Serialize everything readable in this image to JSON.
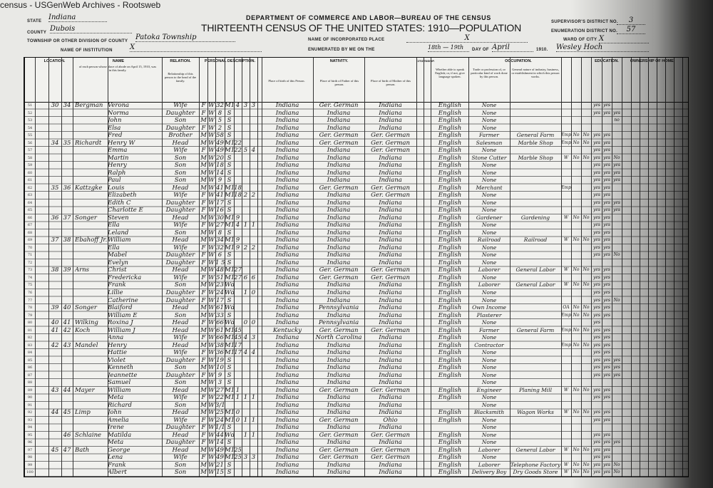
{
  "watermark": "census - USGenWeb Archives - Rootsweb",
  "header": {
    "department": "DEPARTMENT OF COMMERCE AND LABOR—BUREAU OF THE CENSUS",
    "title": "THIRTEENTH CENSUS OF THE UNITED STATES: 1910—POPULATION",
    "state_label": "STATE",
    "state": "Indiana",
    "county_label": "COUNTY",
    "county": "Dubois",
    "township_label": "TOWNSHIP OR OTHER DIVISION OF COUNTY",
    "township": "Patoka Township",
    "institution_label": "NAME OF INSTITUTION",
    "institution": "X",
    "incorporated_label": "NAME OF INCORPORATED PLACE",
    "incorporated": "X",
    "enumerated_label": "ENUMERATED BY ME ON THE",
    "enumerated_days": "18th — 19th",
    "day_of_label": "DAY OF",
    "month": "April",
    "year": "1910.",
    "enumerator": "Wesley Hoch",
    "supervisor_label": "SUPERVISOR'S DISTRICT NO.",
    "supervisor_district": "3",
    "enumeration_label": "ENUMERATION DISTRICT NO.",
    "enumeration_district": "57",
    "ward_label": "WARD OF CITY",
    "ward": "X"
  },
  "column_groups": {
    "location": "LOCATION.",
    "name": "NAME",
    "name_note": "of each person whose place of abode on April 15, 1910, was in this family.",
    "relation": "RELATION.",
    "relation_note": "Relationship of this person to the head of the family.",
    "personal": "PERSONAL DESCRIPTION.",
    "nativity": "NATIVITY.",
    "nativity_person": "Place of birth of this Person.",
    "nativity_father": "Place of birth of Father of this person.",
    "nativity_mother": "Place of birth of Mother of this person.",
    "citizenship": "CITIZENSHIP.",
    "language_note": "Whether able to speak English; or, if not, give language spoken.",
    "occupation": "OCCUPATION.",
    "trade_note": "Trade or profession of, or particular kind of work done by this person.",
    "industry_note": "General nature of industry, business, or establishment in which this person works.",
    "education": "EDUCATION.",
    "ownership": "OWNERSHIP OF HOME."
  },
  "rows": [
    [
      "51",
      "30",
      "34",
      "Bergman",
      "Verona",
      "Wife",
      "F",
      "W",
      "32",
      "M1",
      "4",
      "3",
      "3",
      "Indiana",
      "Ger. German",
      "Indiana",
      "English",
      "None",
      "",
      "",
      "",
      "",
      "yes",
      "yes",
      ""
    ],
    [
      "52",
      "",
      "",
      "",
      "Norma",
      "Daughter",
      "F",
      "W",
      "8",
      "S",
      "",
      "",
      "",
      "Indiana",
      "Indiana",
      "Indiana",
      "English",
      "None",
      "",
      "",
      "",
      "",
      "yes",
      "yes",
      "yes"
    ],
    [
      "53",
      "",
      "",
      "",
      "John",
      "Son",
      "M",
      "W",
      "5",
      "S",
      "",
      "",
      "",
      "Indiana",
      "Indiana",
      "Indiana",
      "English",
      "None",
      "",
      "",
      "",
      "",
      "",
      "",
      "no"
    ],
    [
      "54",
      "",
      "",
      "",
      "Elsa",
      "Daughter",
      "F",
      "W",
      "2",
      "S",
      "",
      "",
      "",
      "Indiana",
      "Indiana",
      "Indiana",
      "English",
      "None",
      "",
      "",
      "",
      "",
      "",
      "",
      ""
    ],
    [
      "55",
      "",
      "",
      "",
      "Fred",
      "Brother",
      "M",
      "W",
      "58",
      "S",
      "",
      "",
      "",
      "Indiana",
      "Ger. German",
      "Ger. German",
      "English",
      "Farmer",
      "General Farm",
      "Emp",
      "No",
      "No",
      "yes",
      "yes",
      ""
    ],
    [
      "56",
      "34",
      "35",
      "Richardt",
      "Henry W",
      "Head",
      "M",
      "W",
      "49",
      "M1",
      "22",
      "",
      "",
      "Indiana",
      "Ger. German",
      "Ger. German",
      "English",
      "Salesman",
      "Marble Shop",
      "Emp",
      "No",
      "No",
      "yes",
      "yes",
      ""
    ],
    [
      "57",
      "",
      "",
      "",
      "Emma",
      "Wife",
      "F",
      "W",
      "49",
      "M1",
      "22",
      "5",
      "4",
      "Indiana",
      "Indiana",
      "Ger. German",
      "English",
      "None",
      "",
      "",
      "",
      "",
      "yes",
      "yes",
      ""
    ],
    [
      "58",
      "",
      "",
      "",
      "Martin",
      "Son",
      "M",
      "W",
      "20",
      "S",
      "",
      "",
      "",
      "Indiana",
      "Indiana",
      "Indiana",
      "English",
      "Stone Cutter",
      "Marble Shop",
      "W",
      "No",
      "No",
      "yes",
      "yes",
      "No"
    ],
    [
      "59",
      "",
      "",
      "",
      "Henry",
      "Son",
      "M",
      "W",
      "18",
      "S",
      "",
      "",
      "",
      "Indiana",
      "Indiana",
      "Indiana",
      "English",
      "None",
      "",
      "",
      "",
      "",
      "yes",
      "yes",
      "yes"
    ],
    [
      "60",
      "",
      "",
      "",
      "Ralph",
      "Son",
      "M",
      "W",
      "14",
      "S",
      "",
      "",
      "",
      "Indiana",
      "Indiana",
      "Indiana",
      "English",
      "None",
      "",
      "",
      "",
      "",
      "yes",
      "yes",
      "yes"
    ],
    [
      "61",
      "",
      "",
      "",
      "Paul",
      "Son",
      "M",
      "W",
      "9",
      "S",
      "",
      "",
      "",
      "Indiana",
      "Indiana",
      "Indiana",
      "English",
      "None",
      "",
      "",
      "",
      "",
      "yes",
      "yes",
      "yes"
    ],
    [
      "62",
      "35",
      "36",
      "Kattzgke",
      "Louis",
      "Head",
      "M",
      "W",
      "41",
      "M1",
      "18",
      "",
      "",
      "Indiana",
      "Ger. German",
      "Ger. German",
      "English",
      "Merchant",
      "",
      "Emp",
      "",
      "",
      "yes",
      "yes",
      ""
    ],
    [
      "63",
      "",
      "",
      "",
      "Elizabeth",
      "Wife",
      "F",
      "W",
      "41",
      "M1",
      "18",
      "2",
      "2",
      "Indiana",
      "Indiana",
      "Ger. German",
      "English",
      "None",
      "",
      "",
      "",
      "",
      "yes",
      "yes",
      ""
    ],
    [
      "64",
      "",
      "",
      "",
      "Edith C",
      "Daughter",
      "F",
      "W",
      "17",
      "S",
      "",
      "",
      "",
      "Indiana",
      "Indiana",
      "Indiana",
      "English",
      "None",
      "",
      "",
      "",
      "",
      "yes",
      "yes",
      "yes"
    ],
    [
      "65",
      "",
      "",
      "",
      "Charlotte E",
      "Daughter",
      "F",
      "W",
      "16",
      "S",
      "",
      "",
      "",
      "Indiana",
      "Indiana",
      "Indiana",
      "English",
      "None",
      "",
      "",
      "",
      "",
      "yes",
      "yes",
      "yes"
    ],
    [
      "66",
      "36",
      "37",
      "Songer",
      "Steven",
      "Head",
      "M",
      "W",
      "30",
      "M1",
      "9",
      "",
      "",
      "Indiana",
      "Indiana",
      "Indiana",
      "English",
      "Gardener",
      "Gardening",
      "W",
      "No",
      "No",
      "yes",
      "yes",
      ""
    ],
    [
      "67",
      "",
      "",
      "",
      "Ella",
      "Wife",
      "F",
      "W",
      "27",
      "M1",
      "4",
      "1",
      "1",
      "Indiana",
      "Indiana",
      "Indiana",
      "English",
      "None",
      "",
      "",
      "",
      "",
      "yes",
      "yes",
      ""
    ],
    [
      "68",
      "",
      "",
      "",
      "Leland",
      "Son",
      "M",
      "W",
      "8",
      "S",
      "",
      "",
      "",
      "Indiana",
      "Indiana",
      "Indiana",
      "English",
      "None",
      "",
      "",
      "",
      "",
      "yes",
      "yes",
      ""
    ],
    [
      "69",
      "37",
      "38",
      "Ebahoff Jr.",
      "William",
      "Head",
      "M",
      "W",
      "34",
      "M1",
      "9",
      "",
      "",
      "Indiana",
      "Indiana",
      "Indiana",
      "English",
      "Railroad",
      "Railroad",
      "W",
      "No",
      "No",
      "yes",
      "yes",
      ""
    ],
    [
      "70",
      "",
      "",
      "",
      "Ella",
      "Wife",
      "F",
      "W",
      "32",
      "M1",
      "9",
      "2",
      "2",
      "Indiana",
      "Indiana",
      "Indiana",
      "English",
      "None",
      "",
      "",
      "",
      "",
      "yes",
      "yes",
      ""
    ],
    [
      "71",
      "",
      "",
      "",
      "Mabel",
      "Daughter",
      "F",
      "W",
      "6",
      "S",
      "",
      "",
      "",
      "Indiana",
      "Indiana",
      "Indiana",
      "English",
      "None",
      "",
      "",
      "",
      "",
      "yes",
      "yes",
      "No"
    ],
    [
      "72",
      "",
      "",
      "",
      "Evelyn",
      "Daughter",
      "F",
      "W",
      "1 5/12",
      "S",
      "",
      "",
      "",
      "Indiana",
      "Indiana",
      "Indiana",
      "English",
      "None",
      "",
      "",
      "",
      "",
      "",
      "",
      ""
    ],
    [
      "73",
      "38",
      "39",
      "Arns",
      "Christ",
      "Head",
      "M",
      "W",
      "48",
      "M1",
      "27",
      "",
      "",
      "Indiana",
      "Ger. German",
      "Ger. German",
      "English",
      "Laborer",
      "General Labor",
      "W",
      "No",
      "No",
      "yes",
      "yes",
      ""
    ],
    [
      "74",
      "",
      "",
      "",
      "Fredericka",
      "Wife",
      "F",
      "W",
      "51",
      "M1",
      "27",
      "6",
      "6",
      "Indiana",
      "Ger. German",
      "Ger. German",
      "English",
      "None",
      "",
      "",
      "",
      "",
      "yes",
      "yes",
      ""
    ],
    [
      "75",
      "",
      "",
      "",
      "Frank",
      "Son",
      "M",
      "W",
      "23",
      "Wd",
      "",
      "",
      "",
      "Indiana",
      "Indiana",
      "Indiana",
      "English",
      "Laborer",
      "General Labor",
      "W",
      "No",
      "No",
      "yes",
      "yes",
      ""
    ],
    [
      "76",
      "",
      "",
      "",
      "Lillie",
      "Daughter",
      "F",
      "W",
      "24",
      "Wd",
      "",
      "1",
      "0",
      "Indiana",
      "Indiana",
      "Indiana",
      "English",
      "None",
      "",
      "",
      "",
      "",
      "yes",
      "yes",
      ""
    ],
    [
      "77",
      "",
      "",
      "",
      "Catherine",
      "Daughter",
      "F",
      "W",
      "17",
      "S",
      "",
      "",
      "",
      "Indiana",
      "Indiana",
      "Indiana",
      "English",
      "None",
      "",
      "",
      "",
      "",
      "yes",
      "yes",
      "No"
    ],
    [
      "78",
      "39",
      "40",
      "Songer",
      "Blaiford",
      "Head",
      "M",
      "W",
      "61",
      "Wd",
      "",
      "",
      "",
      "Indiana",
      "Pennsylvania",
      "Indiana",
      "English",
      "Own Income",
      "",
      "OA",
      "No",
      "No",
      "yes",
      "yes",
      ""
    ],
    [
      "79",
      "",
      "",
      "",
      "William E",
      "Son",
      "M",
      "W",
      "33",
      "S",
      "",
      "",
      "",
      "Indiana",
      "Indiana",
      "Indiana",
      "English",
      "Plasterer",
      "",
      "Emp",
      "No",
      "No",
      "yes",
      "yes",
      ""
    ],
    [
      "80",
      "40",
      "41",
      "Wilking",
      "Roxina J",
      "Head",
      "F",
      "W",
      "66",
      "Wd",
      "",
      "0",
      "0",
      "Indiana",
      "Pennsylvania",
      "Indiana",
      "English",
      "None",
      "",
      "",
      "",
      "",
      "yes",
      "",
      ""
    ],
    [
      "81",
      "41",
      "42",
      "Koch",
      "William J",
      "Head",
      "M",
      "W",
      "61",
      "M1",
      "45",
      "",
      "",
      "Kentucky",
      "Ger. German",
      "Ger. German",
      "English",
      "Farmer",
      "General Farm",
      "Emp",
      "No",
      "No",
      "yes",
      "yes",
      ""
    ],
    [
      "82",
      "",
      "",
      "",
      "Anna",
      "Wife",
      "F",
      "W",
      "66",
      "M1",
      "45",
      "4",
      "3",
      "Indiana",
      "North Carolina",
      "Indiana",
      "English",
      "None",
      "",
      "",
      "",
      "",
      "yes",
      "yes",
      ""
    ],
    [
      "83",
      "42",
      "43",
      "Mandel",
      "Henry",
      "Head",
      "M",
      "W",
      "38",
      "M1",
      "17",
      "",
      "",
      "Indiana",
      "Indiana",
      "Indiana",
      "English",
      "Contractor",
      "",
      "Emp",
      "No",
      "No",
      "yes",
      "yes",
      ""
    ],
    [
      "84",
      "",
      "",
      "",
      "Hattie",
      "Wife",
      "F",
      "W",
      "36",
      "M1",
      "17",
      "4",
      "4",
      "Indiana",
      "Indiana",
      "Indiana",
      "English",
      "None",
      "",
      "",
      "",
      "",
      "yes",
      "yes",
      ""
    ],
    [
      "85",
      "",
      "",
      "",
      "Violet",
      "Daughter",
      "F",
      "W",
      "19",
      "S",
      "",
      "",
      "",
      "Indiana",
      "Indiana",
      "Indiana",
      "English",
      "None",
      "",
      "",
      "",
      "",
      "yes",
      "yes",
      "yes"
    ],
    [
      "86",
      "",
      "",
      "",
      "Kenneth",
      "Son",
      "M",
      "W",
      "10",
      "S",
      "",
      "",
      "",
      "Indiana",
      "Indiana",
      "Indiana",
      "English",
      "None",
      "",
      "",
      "",
      "",
      "yes",
      "yes",
      "yes"
    ],
    [
      "87",
      "",
      "",
      "",
      "Jeannette",
      "Daughter",
      "F",
      "W",
      "9",
      "S",
      "",
      "",
      "",
      "Indiana",
      "Indiana",
      "Indiana",
      "English",
      "None",
      "",
      "",
      "",
      "",
      "yes",
      "yes",
      "yes"
    ],
    [
      "88",
      "",
      "",
      "",
      "Samuel",
      "Son",
      "M",
      "W",
      "3",
      "S",
      "",
      "",
      "",
      "Indiana",
      "Indiana",
      "Indiana",
      "",
      "None",
      "",
      "",
      "",
      "",
      "",
      "",
      ""
    ],
    [
      "89",
      "43",
      "44",
      "Mayer",
      "William",
      "Head",
      "M",
      "W",
      "27",
      "M1",
      "1",
      "",
      "",
      "Indiana",
      "Ger. German",
      "Ger. German",
      "English",
      "Engineer",
      "Planing Mill",
      "W",
      "No",
      "No",
      "yes",
      "yes",
      ""
    ],
    [
      "90",
      "",
      "",
      "",
      "Meta",
      "Wife",
      "F",
      "W",
      "22",
      "M1",
      "1",
      "1",
      "1",
      "Indiana",
      "Indiana",
      "Indiana",
      "English",
      "None",
      "",
      "",
      "",
      "",
      "yes",
      "yes",
      ""
    ],
    [
      "91",
      "",
      "",
      "",
      "Richard",
      "Son",
      "M",
      "W",
      "3/12",
      "",
      "",
      "",
      "",
      "Indiana",
      "Indiana",
      "Indiana",
      "",
      "None",
      "",
      "",
      "",
      "",
      "",
      "",
      ""
    ],
    [
      "92",
      "44",
      "45",
      "Limp",
      "John",
      "Head",
      "M",
      "W",
      "25",
      "M1",
      "0",
      "",
      "",
      "Indiana",
      "Indiana",
      "Indiana",
      "English",
      "Blacksmith",
      "Wagon Works",
      "W",
      "No",
      "No",
      "yes",
      "yes",
      ""
    ],
    [
      "93",
      "",
      "",
      "",
      "Amelia",
      "Wife",
      "F",
      "W",
      "24",
      "M1",
      "0",
      "1",
      "1",
      "Indiana",
      "Ger. German",
      "Ohio",
      "English",
      "None",
      "",
      "",
      "",
      "",
      "yes",
      "yes",
      ""
    ],
    [
      "94",
      "",
      "",
      "",
      "Irene",
      "Daughter",
      "F",
      "W",
      "1/12",
      "S",
      "",
      "",
      "",
      "Indiana",
      "Indiana",
      "Indiana",
      "",
      "None",
      "",
      "",
      "",
      "",
      "",
      "",
      ""
    ],
    [
      "95",
      "",
      "46",
      "Schlaine",
      "Matilda",
      "Head",
      "F",
      "W",
      "44",
      "Wd",
      "",
      "1",
      "1",
      "Indiana",
      "Ger. German",
      "Ger. German",
      "English",
      "None",
      "",
      "",
      "",
      "",
      "yes",
      "yes",
      ""
    ],
    [
      "96",
      "",
      "",
      "",
      "Meta",
      "Daughter",
      "F",
      "W",
      "14",
      "S",
      "",
      "",
      "",
      "Indiana",
      "Indiana",
      "Indiana",
      "English",
      "None",
      "",
      "",
      "",
      "",
      "yes",
      "yes",
      "yes"
    ],
    [
      "97",
      "45",
      "47",
      "Bath",
      "George",
      "Head",
      "M",
      "W",
      "49",
      "M1",
      "25",
      "",
      "",
      "Indiana",
      "Ger. German",
      "Ger. German",
      "English",
      "Laborer",
      "General Labor",
      "W",
      "No",
      "No",
      "yes",
      "yes",
      ""
    ],
    [
      "98",
      "",
      "",
      "",
      "Lena",
      "Wife",
      "F",
      "W",
      "49",
      "M1",
      "25",
      "3",
      "3",
      "Indiana",
      "Ger. German",
      "Ger. German",
      "English",
      "None",
      "",
      "",
      "",
      "",
      "yes",
      "yes",
      ""
    ],
    [
      "99",
      "",
      "",
      "",
      "Frank",
      "Son",
      "M",
      "W",
      "21",
      "S",
      "",
      "",
      "",
      "Indiana",
      "Indiana",
      "Indiana",
      "English",
      "Laborer",
      "Telephone Factory",
      "W",
      "No",
      "No",
      "yes",
      "yes",
      "No"
    ],
    [
      "100",
      "",
      "",
      "",
      "Albert",
      "Son",
      "M",
      "W",
      "15",
      "S",
      "",
      "",
      "",
      "Indiana",
      "Indiana",
      "Indiana",
      "English",
      "Delivery Boy",
      "Dry Goods Store",
      "W",
      "No",
      "No",
      "yes",
      "yes",
      "No"
    ]
  ]
}
